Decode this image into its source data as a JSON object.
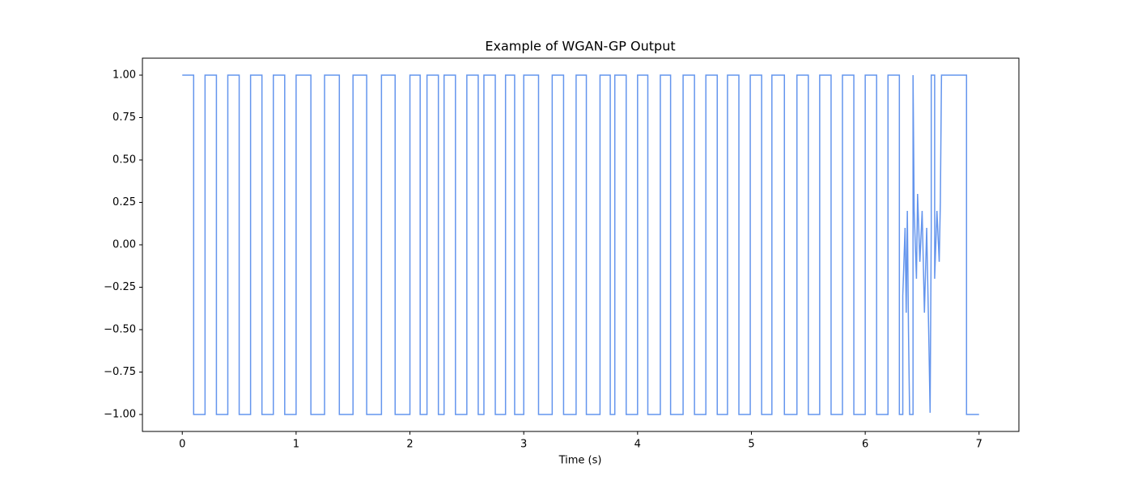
{
  "chart_data": {
    "type": "line",
    "title": "Example of WGAN-GP Output",
    "xlabel": "Time (s)",
    "color": "#6495ed",
    "xlim": [
      -0.35,
      7.35
    ],
    "ylim": [
      -1.1,
      1.1
    ],
    "xticks": [
      0,
      1,
      2,
      3,
      4,
      5,
      6,
      7
    ],
    "yticks": [
      {
        "value": 1,
        "label": "1.00"
      },
      {
        "value": 0.75,
        "label": "0.75"
      },
      {
        "value": 0.5,
        "label": "0.50"
      },
      {
        "value": 0.25,
        "label": "0.25"
      },
      {
        "value": 0,
        "label": "0.00"
      },
      {
        "value": -0.25,
        "label": "−0.25"
      },
      {
        "value": -0.5,
        "label": "−0.50"
      },
      {
        "value": -0.75,
        "label": "−0.75"
      },
      {
        "value": -1,
        "label": "−1.00"
      }
    ],
    "grid": false,
    "x": [
      0,
      0.1,
      0.1,
      0.2,
      0.2,
      0.3,
      0.3,
      0.4,
      0.4,
      0.5,
      0.5,
      0.6,
      0.6,
      0.7,
      0.7,
      0.8,
      0.8,
      0.9,
      0.9,
      1.0,
      1.0,
      1.13,
      1.13,
      1.25,
      1.25,
      1.38,
      1.38,
      1.5,
      1.5,
      1.62,
      1.62,
      1.75,
      1.75,
      1.87,
      1.87,
      2.0,
      2.0,
      2.09,
      2.09,
      2.15,
      2.15,
      2.25,
      2.25,
      2.3,
      2.3,
      2.4,
      2.4,
      2.5,
      2.5,
      2.6,
      2.6,
      2.65,
      2.65,
      2.75,
      2.75,
      2.84,
      2.84,
      2.92,
      2.92,
      3.0,
      3.0,
      3.13,
      3.13,
      3.25,
      3.25,
      3.35,
      3.35,
      3.46,
      3.46,
      3.55,
      3.55,
      3.67,
      3.67,
      3.76,
      3.76,
      3.8,
      3.8,
      3.9,
      3.9,
      4.0,
      4.0,
      4.09,
      4.09,
      4.2,
      4.2,
      4.29,
      4.29,
      4.4,
      4.4,
      4.5,
      4.5,
      4.6,
      4.6,
      4.7,
      4.7,
      4.79,
      4.79,
      4.89,
      4.89,
      4.99,
      4.99,
      5.09,
      5.09,
      5.18,
      5.18,
      5.29,
      5.29,
      5.4,
      5.4,
      5.5,
      5.5,
      5.6,
      5.6,
      5.7,
      5.7,
      5.8,
      5.8,
      5.9,
      5.9,
      6.0,
      6.0,
      6.1,
      6.1,
      6.2,
      6.2,
      6.3,
      6.3,
      6.33,
      6.33,
      6.35,
      6.36,
      6.37,
      6.38,
      6.39,
      6.42,
      6.42,
      6.43,
      6.45,
      6.46,
      6.48,
      6.5,
      6.52,
      6.54,
      6.56,
      6.57,
      6.58,
      6.58,
      6.61,
      6.61,
      6.63,
      6.65,
      6.66,
      6.67,
      6.89,
      6.89,
      7.0
    ],
    "values": [
      1,
      1,
      -1,
      -1,
      1,
      1,
      -1,
      -1,
      1,
      1,
      -1,
      -1,
      1,
      1,
      -1,
      -1,
      1,
      1,
      -1,
      -1,
      1,
      1,
      -1,
      -1,
      1,
      1,
      -1,
      -1,
      1,
      1,
      -1,
      -1,
      1,
      1,
      -1,
      -1,
      1,
      1,
      -1,
      -1,
      1,
      1,
      -1,
      -1,
      1,
      1,
      -1,
      -1,
      1,
      1,
      -1,
      -1,
      1,
      1,
      -1,
      -1,
      1,
      1,
      -1,
      -1,
      1,
      1,
      -1,
      -1,
      1,
      1,
      -1,
      -1,
      1,
      1,
      -1,
      -1,
      1,
      1,
      -1,
      -1,
      1,
      1,
      -1,
      -1,
      1,
      1,
      -1,
      -1,
      1,
      1,
      -1,
      -1,
      1,
      1,
      -1,
      -1,
      1,
      1,
      -1,
      -1,
      1,
      1,
      -1,
      -1,
      1,
      1,
      -1,
      -1,
      1,
      1,
      -1,
      -1,
      1,
      1,
      -1,
      -1,
      1,
      1,
      -1,
      -1,
      1,
      1,
      -1,
      -1,
      1,
      1,
      -1,
      -1,
      1,
      1,
      -1,
      -1,
      -0.3,
      0.1,
      -0.4,
      0.2,
      -0.5,
      -1,
      -1,
      1,
      0.2,
      -0.2,
      0.3,
      -0.1,
      0.2,
      -0.4,
      0.1,
      -0.6,
      -0.99,
      0.1,
      1,
      1,
      -0.2,
      0.2,
      -0.1,
      0.25,
      1,
      1,
      -1,
      -1
    ]
  }
}
